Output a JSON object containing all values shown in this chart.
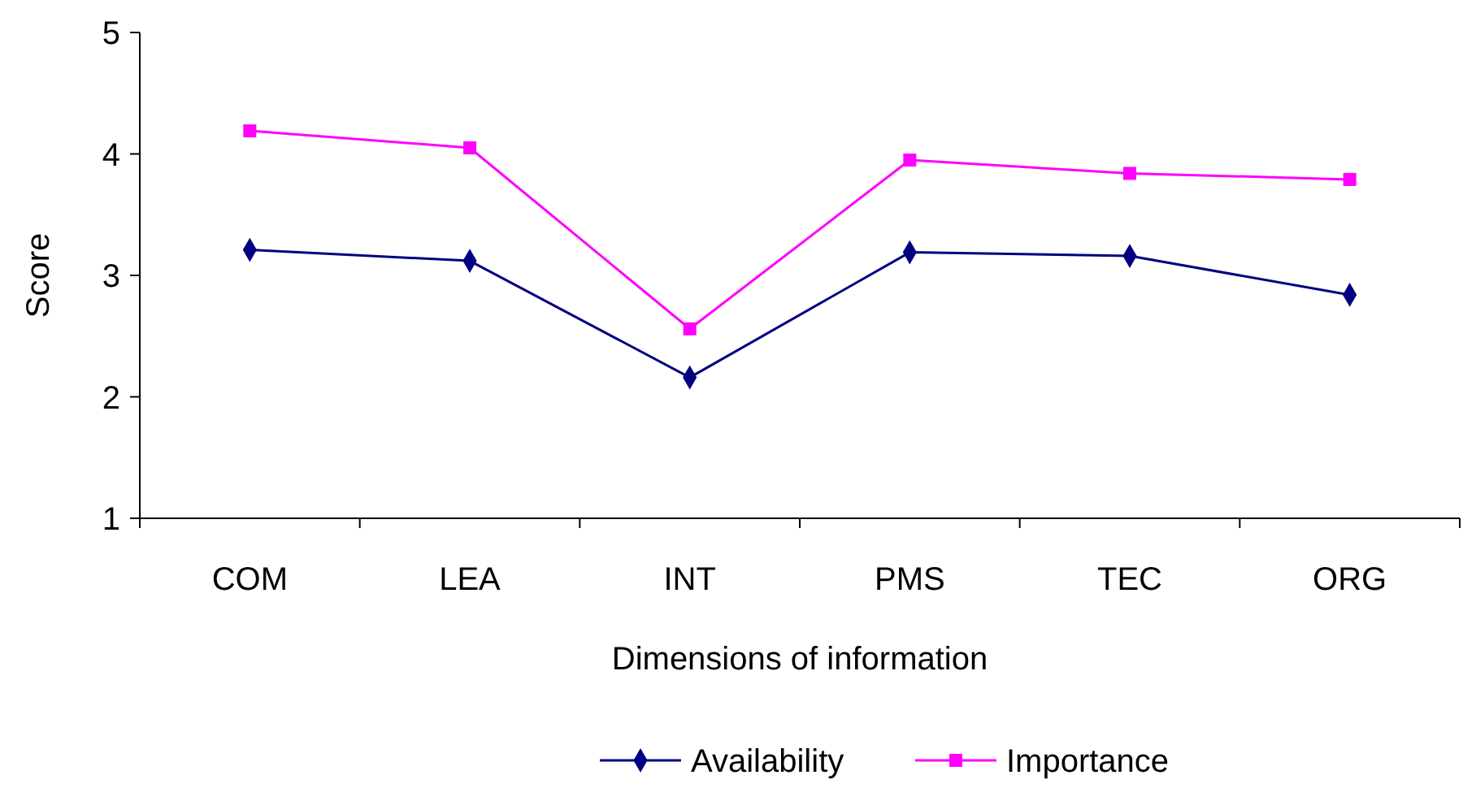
{
  "chart_data": {
    "type": "line",
    "xlabel": "Dimensions of information",
    "ylabel": "Score",
    "categories": [
      "COM",
      "LEA",
      "INT",
      "PMS",
      "TEC",
      "ORG"
    ],
    "series": [
      {
        "name": "Availability",
        "color": "#000080",
        "marker": "diamond",
        "values": [
          3.21,
          3.12,
          2.16,
          3.19,
          3.16,
          2.84
        ]
      },
      {
        "name": "Importance",
        "color": "#ff00ff",
        "marker": "square",
        "values": [
          4.19,
          4.05,
          2.56,
          3.95,
          3.84,
          3.79
        ]
      }
    ],
    "ylim": [
      1,
      5
    ],
    "yticks": [
      1,
      2,
      3,
      4,
      5
    ],
    "grid": false,
    "legend": "bottom",
    "line_style": "solid"
  }
}
